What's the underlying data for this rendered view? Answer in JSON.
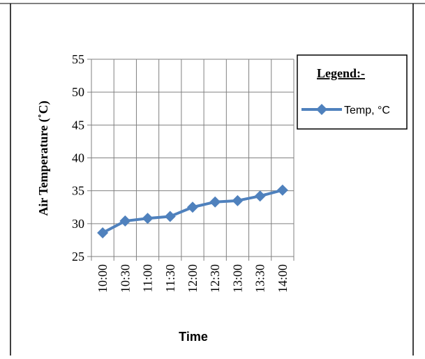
{
  "chart_data": {
    "type": "line",
    "title": "",
    "xlabel": "Time",
    "ylabel": "Air Temperature (˚C)",
    "categories": [
      "10:00",
      "10:30",
      "11:00",
      "11:30",
      "12:00",
      "12:30",
      "13:00",
      "13:30",
      "14:00"
    ],
    "y_ticks": [
      "25",
      "30",
      "35",
      "40",
      "45",
      "50",
      "55"
    ],
    "ylim": [
      25,
      55
    ],
    "grid": true,
    "legend": {
      "title": "Legend:-",
      "placement": "right"
    },
    "series": [
      {
        "name": "Temp, °C",
        "color": "#4F81BD",
        "marker": "diamond",
        "values": [
          28.6,
          30.4,
          30.8,
          31.1,
          32.5,
          33.3,
          33.5,
          34.2,
          35.1
        ]
      }
    ]
  }
}
